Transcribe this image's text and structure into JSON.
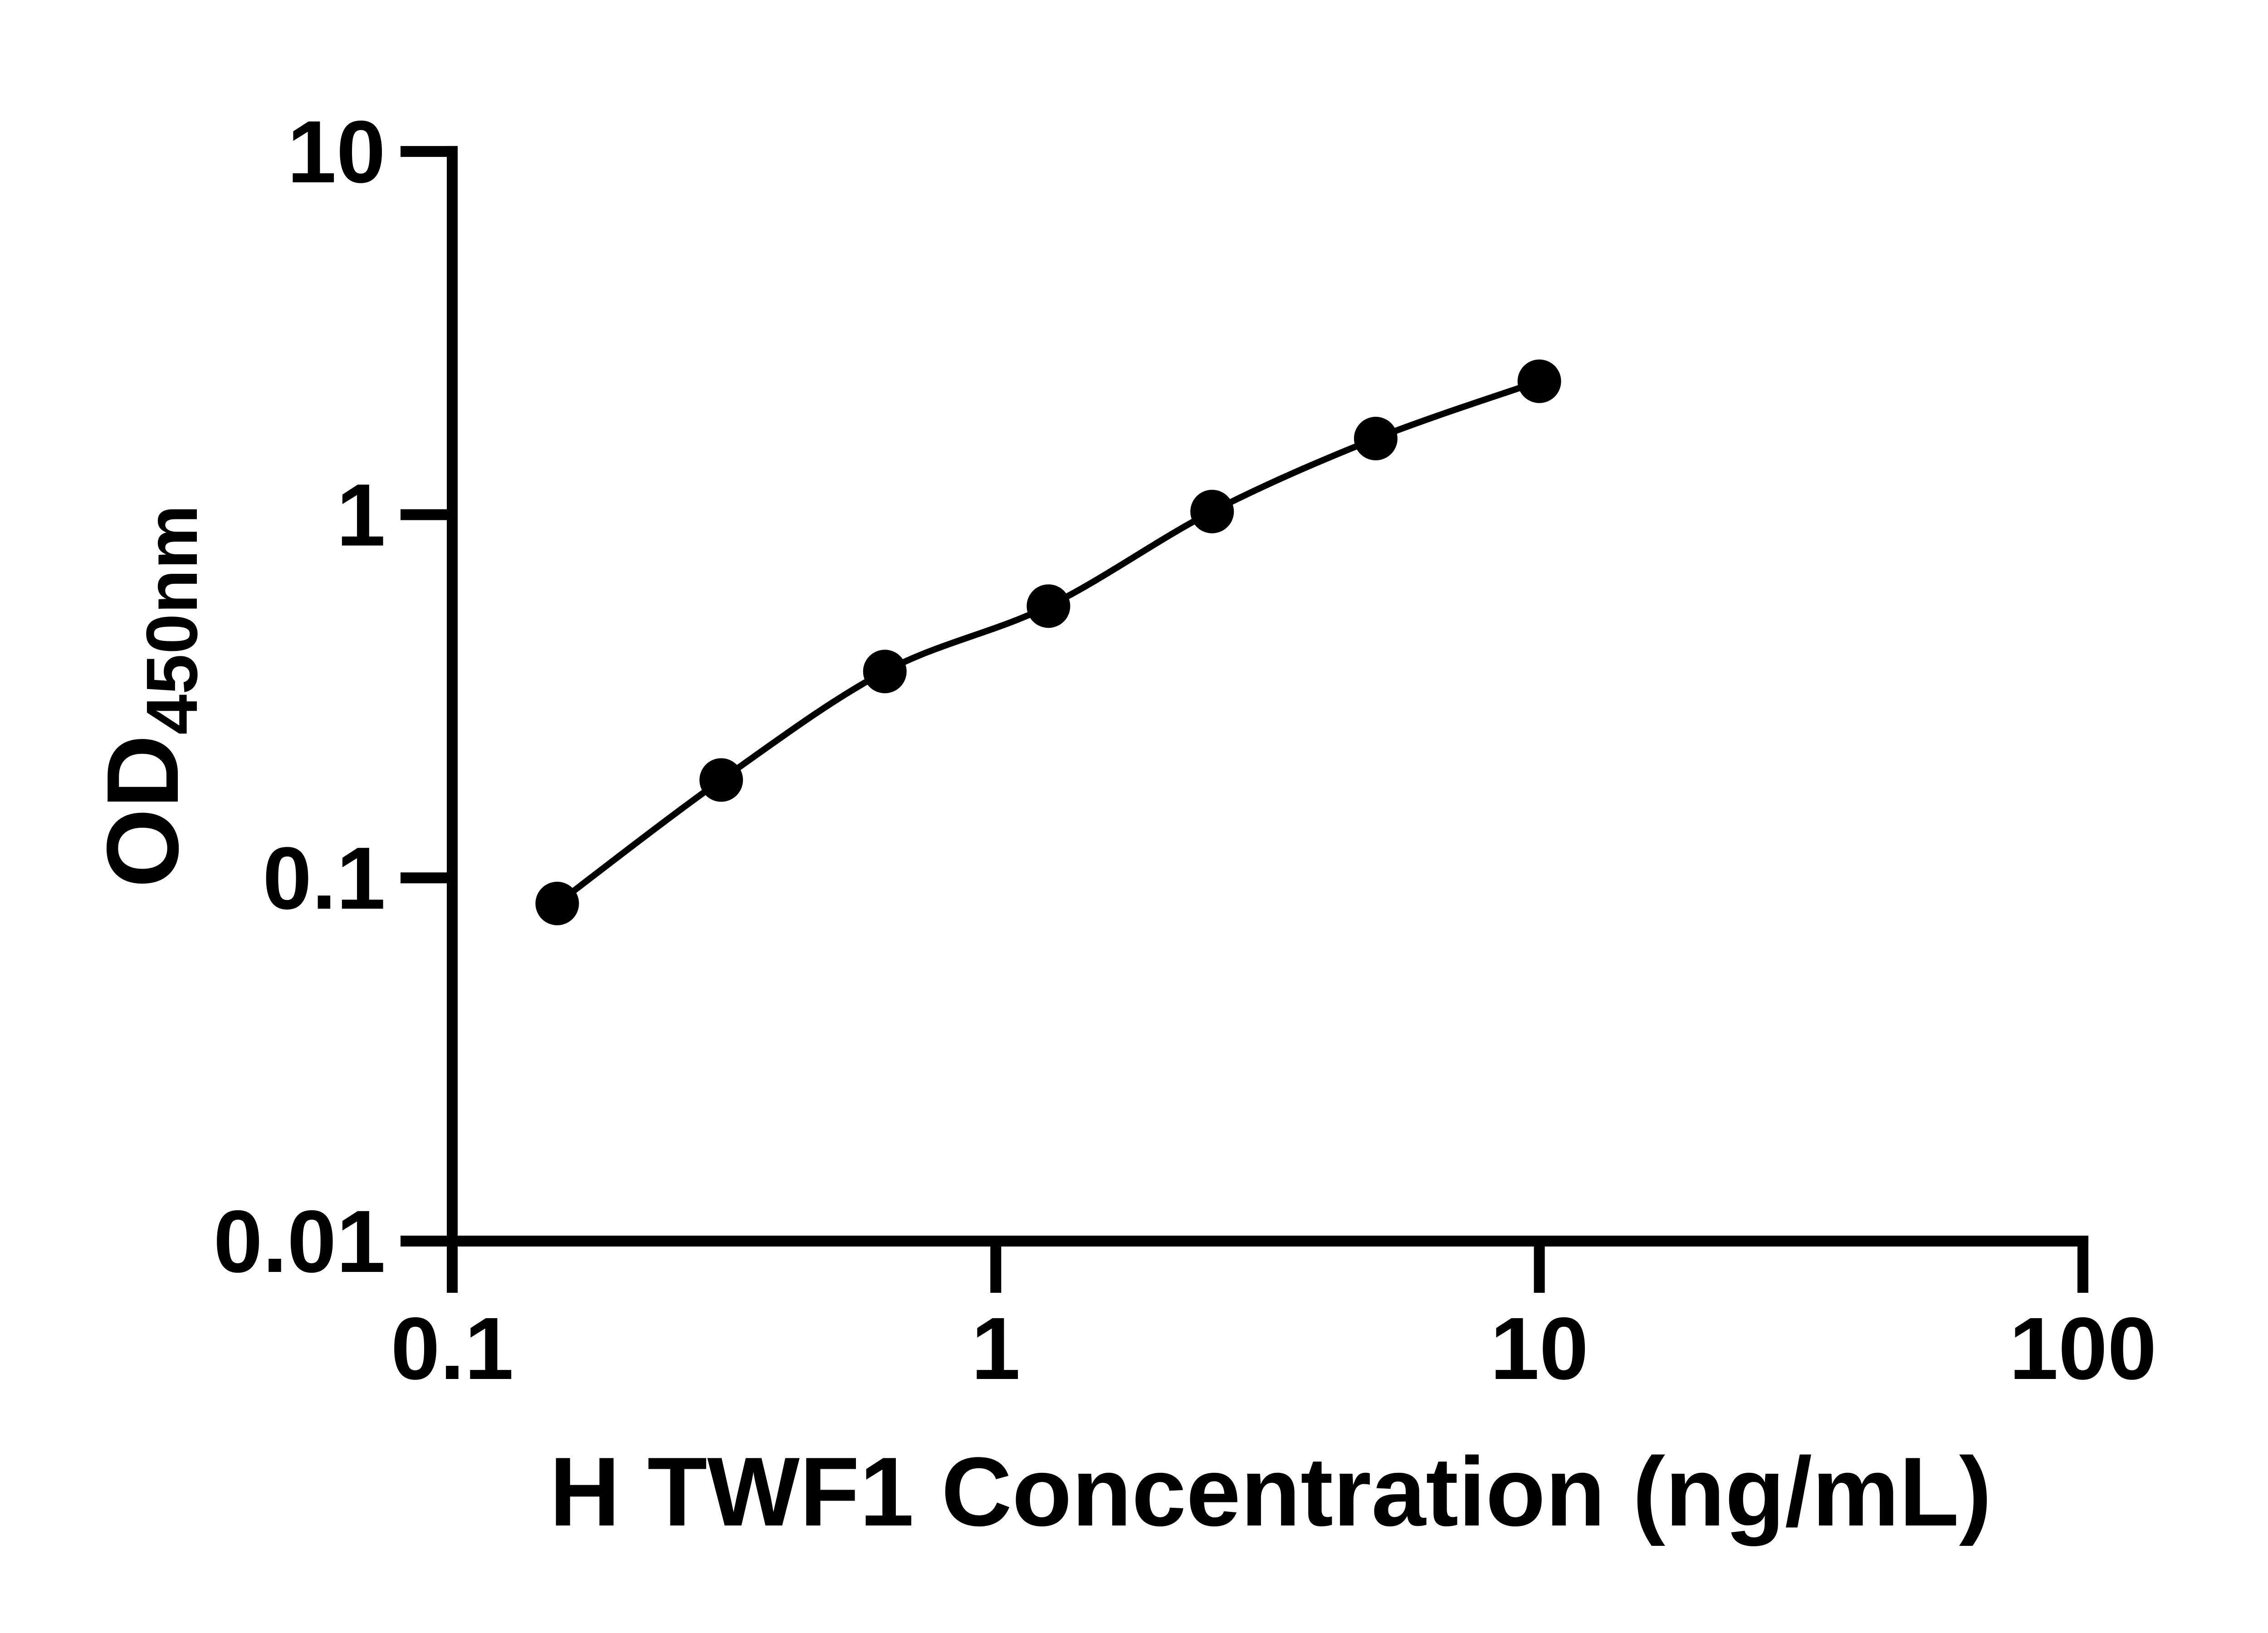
{
  "page": {
    "background": "#ffffff",
    "ink_color": "#000000"
  },
  "chart_data": {
    "type": "line",
    "title": "",
    "xlabel": "H TWF1 Concentration (ng/mL)",
    "ylabel": "OD450nm",
    "ylabel_main": "OD",
    "ylabel_sub": "450nm",
    "x": [
      0.156,
      0.3125,
      0.625,
      1.25,
      2.5,
      5,
      10
    ],
    "y": [
      0.085,
      0.186,
      0.37,
      0.56,
      1.02,
      1.62,
      2.33
    ],
    "xscale": "log",
    "yscale": "log",
    "xlim": [
      0.1,
      100
    ],
    "ylim": [
      0.01,
      10
    ],
    "x_tick_labels": [
      "0.1",
      "1",
      "10",
      "100"
    ],
    "y_tick_labels": [
      "0.01",
      "0.1",
      "1",
      "10"
    ],
    "grid": false,
    "legend": false,
    "marker": "filled-circle",
    "line_color": "#000000",
    "marker_color": "#000000",
    "axis_color": "#000000",
    "background": "#ffffff"
  }
}
